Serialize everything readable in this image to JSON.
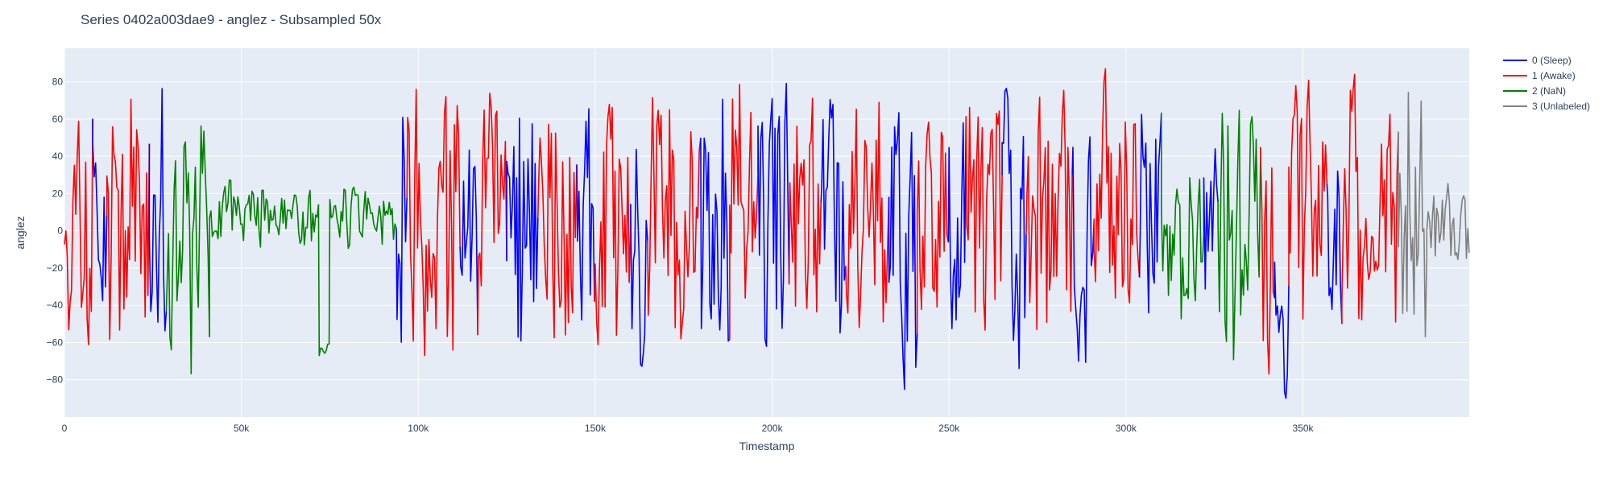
{
  "chart_data": {
    "type": "line",
    "title": "Series 0402a003dae9 - anglez - Subsampled 50x",
    "xlabel": "Timestamp",
    "ylabel": "anglez",
    "xlim": [
      0,
      397000
    ],
    "ylim": [
      -100,
      98
    ],
    "x_ticks": [
      0,
      50000,
      100000,
      150000,
      200000,
      250000,
      300000,
      350000
    ],
    "x_tick_labels": [
      "0",
      "50k",
      "100k",
      "150k",
      "200k",
      "250k",
      "300k",
      "350k"
    ],
    "y_ticks": [
      -80,
      -60,
      -40,
      -20,
      0,
      20,
      40,
      60,
      80
    ],
    "y_tick_labels": [
      "−80",
      "−60",
      "−40",
      "−20",
      "0",
      "20",
      "40",
      "60",
      "80"
    ],
    "grid": true,
    "legend_position": "top-right",
    "plot_background": "#e5ecf6",
    "segments": [
      {
        "label": 1,
        "x0": 0,
        "x1": 8000,
        "amp": 80,
        "center": 0
      },
      {
        "label": 0,
        "x0": 8000,
        "x1": 12000,
        "amp": 85,
        "center": 10
      },
      {
        "label": 1,
        "x0": 12000,
        "x1": 24000,
        "amp": 80,
        "center": 10
      },
      {
        "label": 0,
        "x0": 24000,
        "x1": 29000,
        "amp": 85,
        "center": 0
      },
      {
        "label": 2,
        "x0": 29000,
        "x1": 41000,
        "amp": 70,
        "center": -10
      },
      {
        "label": 2,
        "x0": 41000,
        "x1": 72000,
        "amp": 20,
        "center": 8
      },
      {
        "label": 2,
        "x0": 72000,
        "x1": 75000,
        "amp": 5,
        "center": -63
      },
      {
        "label": 2,
        "x0": 75000,
        "x1": 94000,
        "amp": 18,
        "center": 8
      },
      {
        "label": 0,
        "x0": 94000,
        "x1": 97000,
        "amp": 80,
        "center": 0
      },
      {
        "label": 1,
        "x0": 97000,
        "x1": 112000,
        "amp": 80,
        "center": 0
      },
      {
        "label": 0,
        "x0": 112000,
        "x1": 117000,
        "amp": 75,
        "center": 10
      },
      {
        "label": 1,
        "x0": 117000,
        "x1": 125000,
        "amp": 70,
        "center": 20
      },
      {
        "label": 0,
        "x0": 125000,
        "x1": 134000,
        "amp": 85,
        "center": -10
      },
      {
        "label": 1,
        "x0": 134000,
        "x1": 145000,
        "amp": 80,
        "center": 10
      },
      {
        "label": 0,
        "x0": 145000,
        "x1": 150000,
        "amp": 75,
        "center": 0
      },
      {
        "label": 1,
        "x0": 150000,
        "x1": 160000,
        "amp": 80,
        "center": 0
      },
      {
        "label": 0,
        "x0": 160000,
        "x1": 165000,
        "amp": 80,
        "center": -10
      },
      {
        "label": 1,
        "x0": 165000,
        "x1": 180000,
        "amp": 80,
        "center": 10
      },
      {
        "label": 0,
        "x0": 180000,
        "x1": 188000,
        "amp": 80,
        "center": 0
      },
      {
        "label": 1,
        "x0": 188000,
        "x1": 196000,
        "amp": 70,
        "center": 20
      },
      {
        "label": 0,
        "x0": 196000,
        "x1": 205000,
        "amp": 85,
        "center": 0
      },
      {
        "label": 1,
        "x0": 205000,
        "x1": 214000,
        "amp": 80,
        "center": 10
      },
      {
        "label": 0,
        "x0": 214000,
        "x1": 221000,
        "amp": 85,
        "center": 0
      },
      {
        "label": 1,
        "x0": 221000,
        "x1": 233000,
        "amp": 75,
        "center": 10
      },
      {
        "label": 0,
        "x0": 233000,
        "x1": 241000,
        "amp": 85,
        "center": -10
      },
      {
        "label": 1,
        "x0": 241000,
        "x1": 250000,
        "amp": 80,
        "center": 0
      },
      {
        "label": 0,
        "x0": 250000,
        "x1": 255000,
        "amp": 80,
        "center": 0
      },
      {
        "label": 1,
        "x0": 255000,
        "x1": 265000,
        "amp": 80,
        "center": 10
      },
      {
        "label": 0,
        "x0": 265000,
        "x1": 272000,
        "amp": 85,
        "center": 10
      },
      {
        "label": 1,
        "x0": 272000,
        "x1": 285000,
        "amp": 80,
        "center": 10
      },
      {
        "label": 0,
        "x0": 285000,
        "x1": 291000,
        "amp": 85,
        "center": 0
      },
      {
        "label": 1,
        "x0": 291000,
        "x1": 304000,
        "amp": 80,
        "center": 10
      },
      {
        "label": 0,
        "x0": 304000,
        "x1": 310000,
        "amp": 85,
        "center": 0
      },
      {
        "label": 2,
        "x0": 310000,
        "x1": 322000,
        "amp": 50,
        "center": -5
      },
      {
        "label": 0,
        "x0": 322000,
        "x1": 326000,
        "amp": 70,
        "center": 0
      },
      {
        "label": 2,
        "x0": 326000,
        "x1": 338000,
        "amp": 75,
        "center": 0
      },
      {
        "label": 1,
        "x0": 338000,
        "x1": 342000,
        "amp": 80,
        "center": 0
      },
      {
        "label": 0,
        "x0": 342000,
        "x1": 346000,
        "amp": 80,
        "center": -20
      },
      {
        "label": 1,
        "x0": 346000,
        "x1": 357000,
        "amp": 85,
        "center": 10
      },
      {
        "label": 0,
        "x0": 357000,
        "x1": 361000,
        "amp": 75,
        "center": 0
      },
      {
        "label": 1,
        "x0": 361000,
        "x1": 377000,
        "amp": 80,
        "center": 10
      },
      {
        "label": 3,
        "x0": 377000,
        "x1": 385000,
        "amp": 80,
        "center": 0
      },
      {
        "label": 3,
        "x0": 385000,
        "x1": 397000,
        "amp": 25,
        "center": 5
      }
    ],
    "series": [
      {
        "name": "0 (Sleep)",
        "color": "#0000ff"
      },
      {
        "name": "1 (Awake)",
        "color": "#ff0000"
      },
      {
        "name": "2 (NaN)",
        "color": "#008000"
      },
      {
        "name": "3 (Unlabeled)",
        "color": "#808080"
      }
    ]
  }
}
